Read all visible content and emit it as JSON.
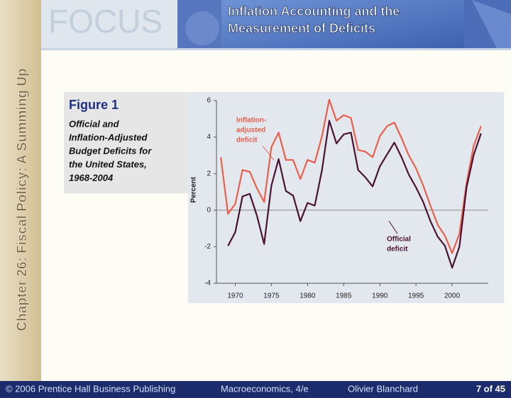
{
  "header": {
    "logo": "FOCUS",
    "title": [
      "Inflation Accounting and the",
      "Measurement of Deficits"
    ]
  },
  "sidebar": {
    "chapter": "Chapter 26: Fiscal Policy: A Summing Up"
  },
  "figure": {
    "label": "Figure 1",
    "caption": [
      "Official and",
      "Inflation-Adjusted",
      "Budget Deficits for",
      "the United States,",
      "1968-2004"
    ]
  },
  "chart_data": {
    "type": "line",
    "y_label": "Percent",
    "x": [
      1968,
      1969,
      1970,
      1971,
      1972,
      1973,
      1974,
      1975,
      1976,
      1977,
      1978,
      1979,
      1980,
      1981,
      1982,
      1983,
      1984,
      1985,
      1986,
      1987,
      1988,
      1989,
      1990,
      1991,
      1992,
      1993,
      1994,
      1995,
      1996,
      1997,
      1998,
      1999,
      2000,
      2001,
      2002,
      2003,
      2004
    ],
    "series": [
      {
        "name": [
          "Inflation-",
          "adjusted",
          "deficit"
        ],
        "color": "#e8604c",
        "values": [
          2.9,
          -0.2,
          0.35,
          2.2,
          2.1,
          1.2,
          0.45,
          3.45,
          4.25,
          2.75,
          2.75,
          1.7,
          2.75,
          2.6,
          4.05,
          6.05,
          4.9,
          5.2,
          5.05,
          3.3,
          3.2,
          2.9,
          4.05,
          4.6,
          4.8,
          3.95,
          3.0,
          2.3,
          1.35,
          0.25,
          -0.8,
          -1.4,
          -2.35,
          -1.3,
          1.5,
          3.55,
          4.6
        ]
      },
      {
        "name": [
          "Official",
          "deficit"
        ],
        "color": "#4a1232",
        "values": [
          null,
          -1.95,
          -1.2,
          0.75,
          0.9,
          -0.3,
          -1.85,
          1.35,
          2.8,
          1.05,
          0.8,
          -0.6,
          0.4,
          0.25,
          2.2,
          4.9,
          3.65,
          4.15,
          4.25,
          2.2,
          1.8,
          1.3,
          2.4,
          3.05,
          3.7,
          2.9,
          1.95,
          1.25,
          0.45,
          -0.6,
          -1.45,
          -1.95,
          -3.15,
          -2.0,
          1.25,
          3.05,
          4.2
        ]
      }
    ],
    "xlim": [
      1967.4,
      2005
    ],
    "xticks": [
      1970,
      1975,
      1980,
      1985,
      1990,
      1995,
      2000
    ],
    "ylim": [
      -4,
      6
    ],
    "yticks": [
      -4,
      -2,
      0,
      2,
      4,
      6
    ]
  },
  "footer": {
    "copyright": "© 2006 Prentice Hall Business Publishing",
    "book": "Macroeconomics, 4/e",
    "author": "Olivier Blanchard",
    "page": "7 of 45"
  }
}
